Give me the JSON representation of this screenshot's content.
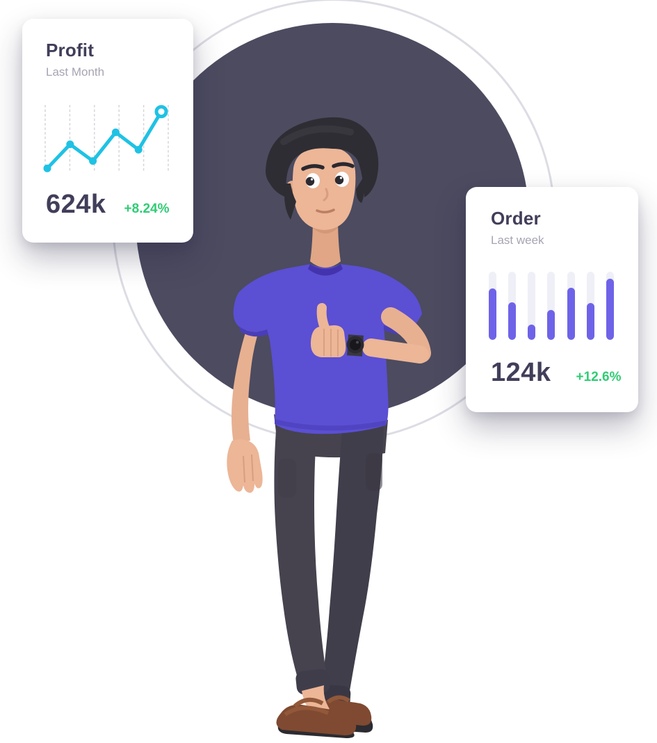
{
  "colors": {
    "circle": "#4c4b60",
    "ring": "#dcdde4",
    "text_dark": "#413e5a",
    "text_gray": "#a6a5b2",
    "green": "#2fcd74",
    "cyan": "#1fc2e4",
    "purple": "#6e63e8",
    "bar_track": "#efeff7",
    "grid_line": "#d5d5dc"
  },
  "chart_data": [
    {
      "type": "line",
      "card": "profit",
      "title": "Profit",
      "subtitle": "Last Month",
      "x": [
        1,
        2,
        3,
        4,
        5,
        6
      ],
      "values": [
        5,
        41,
        16,
        59,
        33,
        90
      ],
      "unit": "relative-percent-of-chart-height (no axis labels shown)",
      "value_label": "624k",
      "change_label": "+8.24%",
      "color": "#1fc2e4",
      "grid": "dashed-vertical-lines",
      "legend": "none",
      "last_point_style": "open-ring"
    },
    {
      "type": "bar",
      "card": "order",
      "title": "Order",
      "subtitle": "Last week",
      "categories": [
        "1",
        "2",
        "3",
        "4",
        "5",
        "6",
        "7"
      ],
      "values": [
        76,
        55,
        22,
        44,
        77,
        54,
        90
      ],
      "unit": "relative-percent-of-track-height (no axis labels shown)",
      "value_label": "124k",
      "change_label": "+12.6%",
      "color": "#6e63e8",
      "track_color": "#efeff7",
      "grid": "off",
      "legend": "none"
    }
  ],
  "illustration": {
    "subject": "3d-character-man-thumbs-up"
  }
}
